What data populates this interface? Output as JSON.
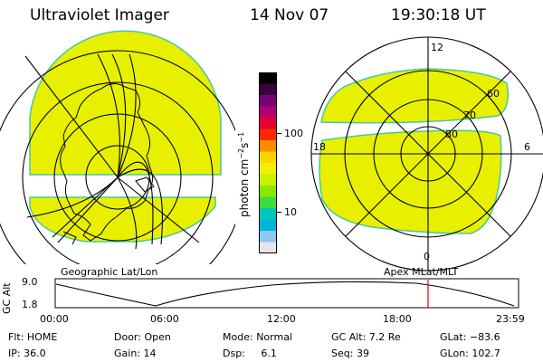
{
  "header": {
    "instrument": "Ultraviolet Imager",
    "date": "14 Nov 07",
    "time": "19:30:18 UT"
  },
  "colorbar": {
    "unit_label": "photon cm",
    "exp1": "−2",
    "mid": "s",
    "exp2": "−1",
    "ticks": [
      "100",
      "10"
    ],
    "colors": [
      "#000000",
      "#3c003c",
      "#780078",
      "#b4006e",
      "#e60032",
      "#ff2800",
      "#ff8c00",
      "#ffd200",
      "#f0f000",
      "#c8f000",
      "#8ce600",
      "#3cdc3c",
      "#00c8b4",
      "#00b4dc",
      "#8cc8f0",
      "#e6e6e6"
    ]
  },
  "left_map": {
    "title": "Geographic Lat/Lon"
  },
  "right_map": {
    "title": "Apex  MLat/MLT",
    "mlt_labels": {
      "top": "12",
      "left": "18",
      "right": "6",
      "bottom": "0"
    },
    "mlat_labels": [
      "60",
      "70",
      "80"
    ]
  },
  "timeline": {
    "y_axis": "GC Alt",
    "y_ticks": [
      "9.0",
      "1.8"
    ],
    "x_ticks": [
      "00:00",
      "06:00",
      "12:00",
      "18:00",
      "23:59"
    ],
    "current_marker_time": "19:30"
  },
  "status": {
    "rows": [
      [
        {
          "k": "Flt:",
          "v": "HOME"
        },
        {
          "k": "Door:",
          "v": "Open"
        },
        {
          "k": "Mode:",
          "v": "Normal"
        },
        {
          "k": "GC Alt:",
          "v": "7.2 Re"
        },
        {
          "k": "GLat:",
          "v": "−83.6"
        }
      ],
      [
        {
          "k": "IP:",
          "v": "36.0"
        },
        {
          "k": "Gain:",
          "v": "14"
        },
        {
          "k": "Dsp:",
          "v": "6.1"
        },
        {
          "k": "Seq:",
          "v": "39"
        },
        {
          "k": "GLon:",
          "v": "102.7"
        }
      ]
    ]
  },
  "colors": {
    "emission": "#e8f000",
    "emission_edge": "#46c8a0",
    "marker": "#e00000"
  }
}
